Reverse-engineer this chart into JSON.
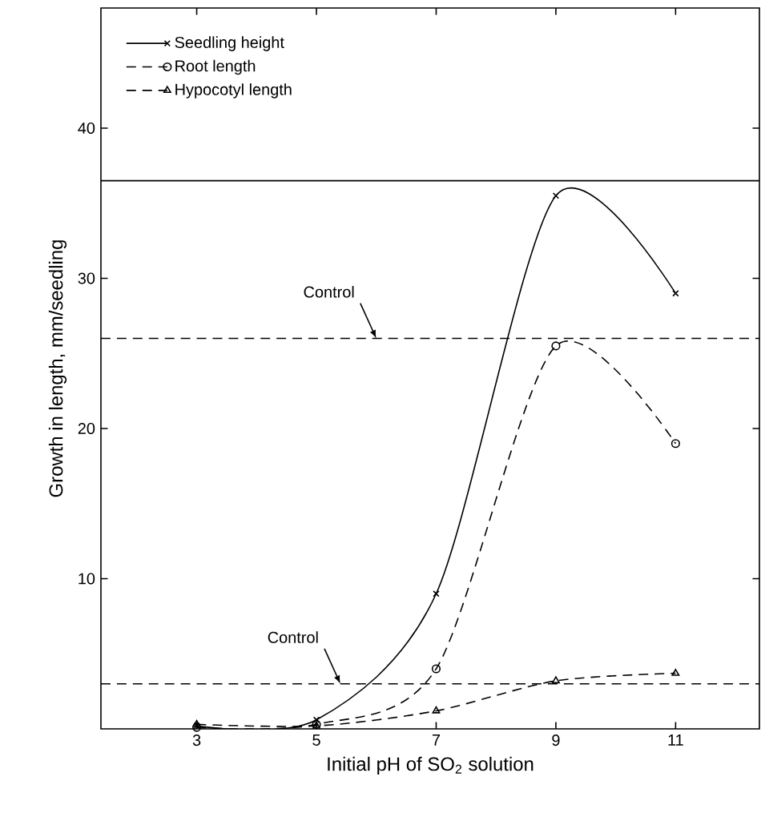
{
  "chart_data": {
    "type": "line",
    "xlabel": "Initial pH of SO$_{2}$ solution",
    "ylabel": "Growth in length, mm/seedling",
    "x": [
      3,
      5,
      7,
      9,
      11
    ],
    "series": [
      {
        "name": "Seedling height",
        "color": "#000000",
        "marker": "cross",
        "line_style": "solid",
        "values": [
          0.2,
          0.6,
          9,
          35.5,
          29
        ]
      },
      {
        "name": "Root length",
        "color": "#000000",
        "marker": "circle",
        "line_style": "dashed",
        "values": [
          0.1,
          0.3,
          4,
          25.5,
          19
        ]
      },
      {
        "name": "Hypocotyl length",
        "color": "#000000",
        "marker": "triangle",
        "line_style": "dashed",
        "values": [
          0.3,
          0.2,
          1.2,
          3.2,
          3.7
        ]
      }
    ],
    "ref_lines": [
      {
        "axis": "y",
        "value": 36.5,
        "color": "#000000",
        "line_style": "solid"
      },
      {
        "axis": "y",
        "value": 26,
        "color": "#000000",
        "line_style": "dashed"
      },
      {
        "axis": "y",
        "value": 3,
        "color": "#000000",
        "line_style": "dashed"
      }
    ],
    "annotations": [
      {
        "text": "Control",
        "x": 6.0,
        "y": 26
      },
      {
        "text": "Control",
        "x": 5.4,
        "y": 3
      }
    ],
    "xlim": [
      1.4,
      12.4
    ],
    "ylim": [
      0,
      48
    ],
    "xticks": [
      3,
      5,
      7,
      9,
      11
    ],
    "yticks": [
      10,
      20,
      30,
      40
    ],
    "grid": false,
    "legend": "top left"
  }
}
